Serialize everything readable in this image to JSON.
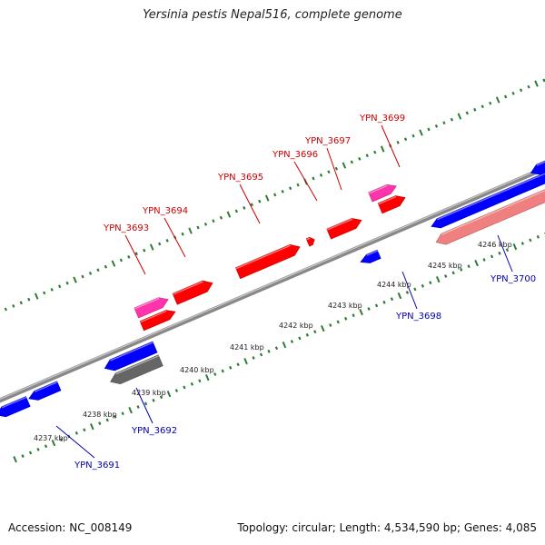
{
  "title": "Yersinia pestis Nepal516, complete genome",
  "accession": "Accession: NC_008149",
  "summary": "Topology: circular; Length: 4,534,590 bp; Genes: 4,085",
  "colors": {
    "plus_gene": "#ff0000",
    "plus_pseudo": "#ff33aa",
    "minus_gene": "#0000ff",
    "minus_rna": "#f08080",
    "minus_other": "#666666",
    "plus_label": "#cc0000",
    "minus_label": "#0000aa",
    "tick": "#2e7d32",
    "backbone": "#888888"
  },
  "ticks": [
    {
      "label": "4237 kbp"
    },
    {
      "label": "4238 kbp"
    },
    {
      "label": "4239 kbp"
    },
    {
      "label": "4240 kbp"
    },
    {
      "label": "4241 kbp"
    },
    {
      "label": "4242 kbp"
    },
    {
      "label": "4243 kbp"
    },
    {
      "label": "4244 kbp"
    },
    {
      "label": "4245 kbp"
    },
    {
      "label": "4246 kbp"
    }
  ],
  "plus_labels": [
    {
      "text": "YPN_3693"
    },
    {
      "text": "YPN_3694"
    },
    {
      "text": "YPN_3695"
    },
    {
      "text": "YPN_3696"
    },
    {
      "text": "YPN_3697"
    },
    {
      "text": "YPN_3699"
    }
  ],
  "minus_labels": [
    {
      "text": "YPN_3691"
    },
    {
      "text": "YPN_3692"
    },
    {
      "text": "YPN_3698"
    },
    {
      "text": "YPN_3700"
    }
  ]
}
